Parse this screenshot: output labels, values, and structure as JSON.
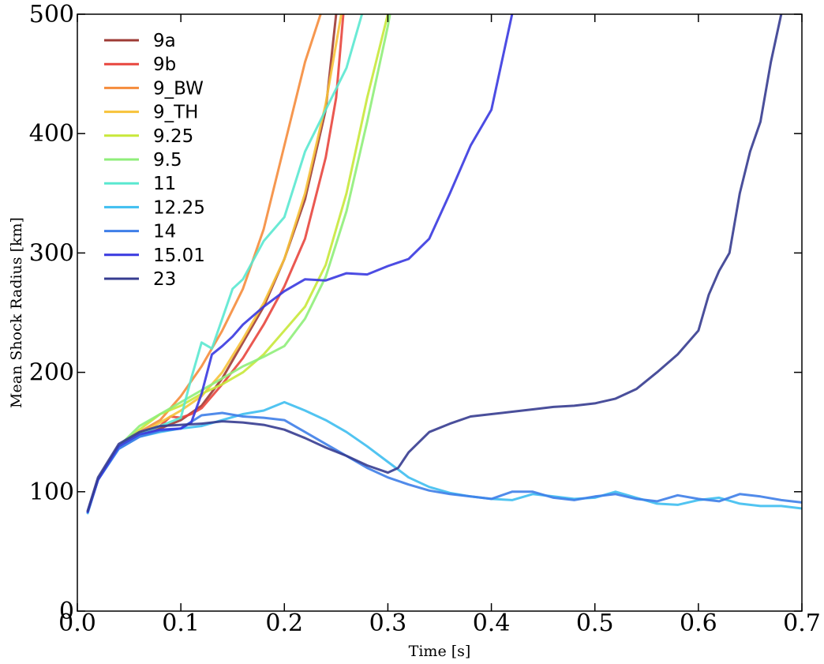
{
  "chart_data": {
    "type": "line",
    "title": "",
    "xlabel": "Time [s]",
    "ylabel": "Mean Shock Radius [km]",
    "xlim": [
      0.0,
      0.7
    ],
    "ylim": [
      0,
      500
    ],
    "xticks": [
      "0.0",
      "0.1",
      "0.2",
      "0.3",
      "0.4",
      "0.5",
      "0.6",
      "0.7"
    ],
    "yticks": [
      "0",
      "100",
      "200",
      "300",
      "400",
      "500"
    ],
    "grid": false,
    "legend_position": "top-left",
    "series": [
      {
        "name": "9a",
        "color": "#9e3b35",
        "points": [
          [
            0.01,
            83
          ],
          [
            0.02,
            110
          ],
          [
            0.04,
            138
          ],
          [
            0.06,
            147
          ],
          [
            0.08,
            153
          ],
          [
            0.1,
            160
          ],
          [
            0.12,
            172
          ],
          [
            0.14,
            195
          ],
          [
            0.16,
            225
          ],
          [
            0.18,
            255
          ],
          [
            0.2,
            295
          ],
          [
            0.22,
            345
          ],
          [
            0.24,
            420
          ],
          [
            0.25,
            500
          ]
        ]
      },
      {
        "name": "9b",
        "color": "#e8463e",
        "points": [
          [
            0.01,
            83
          ],
          [
            0.02,
            110
          ],
          [
            0.04,
            137
          ],
          [
            0.06,
            146
          ],
          [
            0.08,
            155
          ],
          [
            0.09,
            163
          ],
          [
            0.1,
            162
          ],
          [
            0.11,
            165
          ],
          [
            0.12,
            170
          ],
          [
            0.14,
            190
          ],
          [
            0.16,
            212
          ],
          [
            0.18,
            240
          ],
          [
            0.2,
            272
          ],
          [
            0.22,
            312
          ],
          [
            0.24,
            380
          ],
          [
            0.25,
            430
          ],
          [
            0.257,
            500
          ]
        ]
      },
      {
        "name": "9_BW",
        "color": "#f58c3c",
        "points": [
          [
            0.01,
            83
          ],
          [
            0.02,
            110
          ],
          [
            0.04,
            137
          ],
          [
            0.06,
            150
          ],
          [
            0.08,
            160
          ],
          [
            0.1,
            180
          ],
          [
            0.12,
            205
          ],
          [
            0.14,
            235
          ],
          [
            0.16,
            270
          ],
          [
            0.18,
            320
          ],
          [
            0.2,
            390
          ],
          [
            0.22,
            460
          ],
          [
            0.235,
            500
          ]
        ]
      },
      {
        "name": "9_TH",
        "color": "#f7c23a",
        "points": [
          [
            0.01,
            83
          ],
          [
            0.02,
            110
          ],
          [
            0.04,
            138
          ],
          [
            0.06,
            148
          ],
          [
            0.08,
            158
          ],
          [
            0.1,
            168
          ],
          [
            0.12,
            180
          ],
          [
            0.14,
            200
          ],
          [
            0.16,
            228
          ],
          [
            0.18,
            258
          ],
          [
            0.2,
            295
          ],
          [
            0.22,
            350
          ],
          [
            0.24,
            425
          ],
          [
            0.255,
            500
          ]
        ]
      },
      {
        "name": "9.25",
        "color": "#c8e83a",
        "points": [
          [
            0.01,
            83
          ],
          [
            0.02,
            110
          ],
          [
            0.04,
            138
          ],
          [
            0.06,
            152
          ],
          [
            0.08,
            165
          ],
          [
            0.1,
            172
          ],
          [
            0.12,
            182
          ],
          [
            0.14,
            190
          ],
          [
            0.16,
            200
          ],
          [
            0.18,
            215
          ],
          [
            0.2,
            235
          ],
          [
            0.22,
            255
          ],
          [
            0.24,
            290
          ],
          [
            0.26,
            350
          ],
          [
            0.28,
            430
          ],
          [
            0.3,
            500
          ]
        ]
      },
      {
        "name": "9.5",
        "color": "#8fee7a",
        "points": [
          [
            0.01,
            83
          ],
          [
            0.02,
            110
          ],
          [
            0.04,
            138
          ],
          [
            0.06,
            155
          ],
          [
            0.08,
            165
          ],
          [
            0.1,
            175
          ],
          [
            0.12,
            185
          ],
          [
            0.14,
            195
          ],
          [
            0.16,
            205
          ],
          [
            0.18,
            213
          ],
          [
            0.2,
            222
          ],
          [
            0.22,
            245
          ],
          [
            0.24,
            280
          ],
          [
            0.26,
            335
          ],
          [
            0.28,
            410
          ],
          [
            0.3,
            490
          ],
          [
            0.302,
            500
          ]
        ]
      },
      {
        "name": "11",
        "color": "#5ae8d0",
        "points": [
          [
            0.01,
            83
          ],
          [
            0.02,
            110
          ],
          [
            0.04,
            138
          ],
          [
            0.06,
            148
          ],
          [
            0.08,
            155
          ],
          [
            0.1,
            162
          ],
          [
            0.11,
            195
          ],
          [
            0.12,
            225
          ],
          [
            0.13,
            220
          ],
          [
            0.14,
            245
          ],
          [
            0.15,
            270
          ],
          [
            0.16,
            278
          ],
          [
            0.18,
            310
          ],
          [
            0.2,
            330
          ],
          [
            0.22,
            385
          ],
          [
            0.24,
            420
          ],
          [
            0.26,
            455
          ],
          [
            0.275,
            500
          ]
        ]
      },
      {
        "name": "12.25",
        "color": "#3ebef0",
        "points": [
          [
            0.01,
            82
          ],
          [
            0.02,
            110
          ],
          [
            0.04,
            136
          ],
          [
            0.06,
            146
          ],
          [
            0.08,
            150
          ],
          [
            0.1,
            153
          ],
          [
            0.12,
            155
          ],
          [
            0.14,
            160
          ],
          [
            0.16,
            165
          ],
          [
            0.18,
            168
          ],
          [
            0.2,
            175
          ],
          [
            0.22,
            168
          ],
          [
            0.24,
            160
          ],
          [
            0.26,
            150
          ],
          [
            0.28,
            138
          ],
          [
            0.3,
            125
          ],
          [
            0.32,
            112
          ],
          [
            0.34,
            104
          ],
          [
            0.36,
            99
          ],
          [
            0.38,
            96
          ],
          [
            0.4,
            94
          ],
          [
            0.42,
            93
          ],
          [
            0.44,
            98
          ],
          [
            0.46,
            96
          ],
          [
            0.48,
            94
          ],
          [
            0.5,
            95
          ],
          [
            0.52,
            100
          ],
          [
            0.54,
            95
          ],
          [
            0.56,
            90
          ],
          [
            0.58,
            89
          ],
          [
            0.6,
            93
          ],
          [
            0.62,
            95
          ],
          [
            0.64,
            90
          ],
          [
            0.66,
            88
          ],
          [
            0.68,
            88
          ],
          [
            0.7,
            86
          ]
        ]
      },
      {
        "name": "14",
        "color": "#3e7ee8",
        "points": [
          [
            0.01,
            83
          ],
          [
            0.02,
            110
          ],
          [
            0.04,
            136
          ],
          [
            0.06,
            146
          ],
          [
            0.08,
            151
          ],
          [
            0.1,
            153
          ],
          [
            0.12,
            164
          ],
          [
            0.14,
            166
          ],
          [
            0.16,
            163
          ],
          [
            0.18,
            162
          ],
          [
            0.2,
            160
          ],
          [
            0.22,
            150
          ],
          [
            0.24,
            140
          ],
          [
            0.26,
            130
          ],
          [
            0.28,
            120
          ],
          [
            0.3,
            112
          ],
          [
            0.32,
            106
          ],
          [
            0.34,
            101
          ],
          [
            0.36,
            98
          ],
          [
            0.38,
            96
          ],
          [
            0.4,
            94
          ],
          [
            0.42,
            100
          ],
          [
            0.44,
            100
          ],
          [
            0.46,
            95
          ],
          [
            0.48,
            93
          ],
          [
            0.5,
            96
          ],
          [
            0.52,
            98
          ],
          [
            0.54,
            94
          ],
          [
            0.56,
            92
          ],
          [
            0.58,
            97
          ],
          [
            0.6,
            94
          ],
          [
            0.62,
            92
          ],
          [
            0.64,
            98
          ],
          [
            0.66,
            96
          ],
          [
            0.68,
            93
          ],
          [
            0.7,
            91
          ]
        ]
      },
      {
        "name": "15.01",
        "color": "#3838e0",
        "points": [
          [
            0.01,
            83
          ],
          [
            0.02,
            110
          ],
          [
            0.04,
            138
          ],
          [
            0.06,
            148
          ],
          [
            0.08,
            152
          ],
          [
            0.1,
            153
          ],
          [
            0.11,
            158
          ],
          [
            0.12,
            182
          ],
          [
            0.13,
            215
          ],
          [
            0.14,
            222
          ],
          [
            0.15,
            230
          ],
          [
            0.16,
            240
          ],
          [
            0.18,
            255
          ],
          [
            0.2,
            268
          ],
          [
            0.22,
            278
          ],
          [
            0.24,
            277
          ],
          [
            0.26,
            283
          ],
          [
            0.28,
            282
          ],
          [
            0.3,
            289
          ],
          [
            0.32,
            295
          ],
          [
            0.34,
            312
          ],
          [
            0.36,
            350
          ],
          [
            0.38,
            390
          ],
          [
            0.4,
            420
          ],
          [
            0.42,
            500
          ]
        ]
      },
      {
        "name": "23",
        "color": "#363c90",
        "points": [
          [
            0.01,
            84
          ],
          [
            0.02,
            112
          ],
          [
            0.04,
            140
          ],
          [
            0.06,
            150
          ],
          [
            0.08,
            155
          ],
          [
            0.1,
            156
          ],
          [
            0.12,
            157
          ],
          [
            0.14,
            159
          ],
          [
            0.16,
            158
          ],
          [
            0.18,
            156
          ],
          [
            0.2,
            152
          ],
          [
            0.22,
            145
          ],
          [
            0.24,
            137
          ],
          [
            0.26,
            130
          ],
          [
            0.28,
            122
          ],
          [
            0.3,
            116
          ],
          [
            0.31,
            120
          ],
          [
            0.32,
            133
          ],
          [
            0.34,
            150
          ],
          [
            0.36,
            157
          ],
          [
            0.38,
            163
          ],
          [
            0.4,
            165
          ],
          [
            0.42,
            167
          ],
          [
            0.44,
            169
          ],
          [
            0.46,
            171
          ],
          [
            0.48,
            172
          ],
          [
            0.5,
            174
          ],
          [
            0.52,
            178
          ],
          [
            0.54,
            186
          ],
          [
            0.56,
            200
          ],
          [
            0.58,
            215
          ],
          [
            0.6,
            235
          ],
          [
            0.61,
            265
          ],
          [
            0.62,
            285
          ],
          [
            0.63,
            300
          ],
          [
            0.64,
            350
          ],
          [
            0.65,
            385
          ],
          [
            0.66,
            410
          ],
          [
            0.67,
            460
          ],
          [
            0.68,
            500
          ]
        ]
      }
    ]
  }
}
